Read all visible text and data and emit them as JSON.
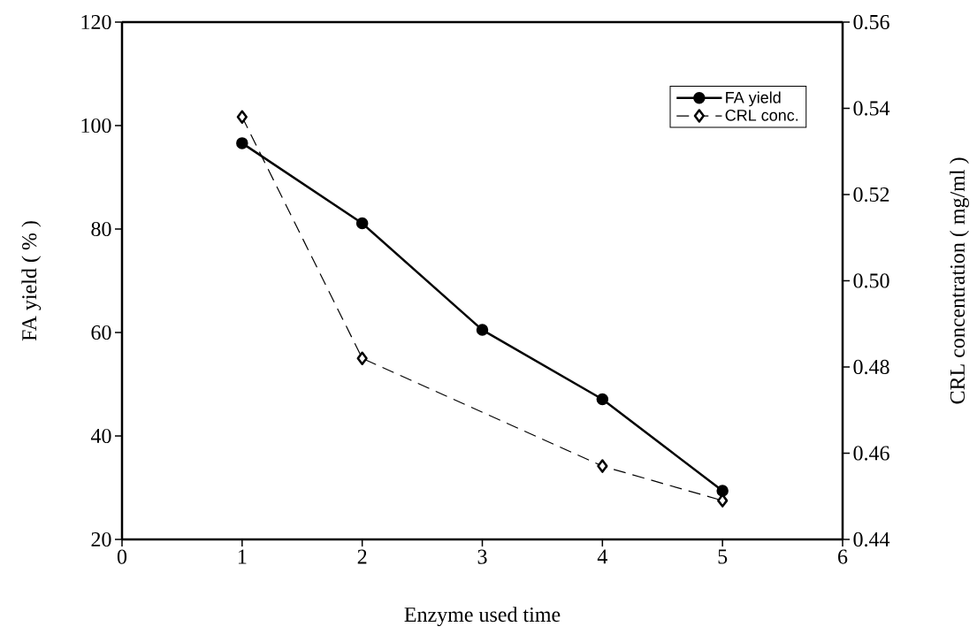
{
  "chart_data": {
    "type": "line",
    "xlabel": "Enzyme used time",
    "ylabel": "FA  yield  ( % )",
    "y2label": "CRL concentration ( mg/ml )",
    "x": [
      1,
      2,
      3,
      4,
      5
    ],
    "series": [
      {
        "name": "FA  yield",
        "color": "#000000",
        "values": [
          96.6,
          81.1,
          60.5,
          47.1,
          29.4
        ],
        "marker": "circle",
        "line_style": "solid"
      },
      {
        "name": "CRL conc.",
        "color": "#000000",
        "values": [
          0.538,
          0.482,
          null,
          0.457,
          0.449
        ],
        "axis": "y2",
        "marker": "diamond",
        "line_style": "dashed"
      }
    ],
    "xlim": [
      0,
      6
    ],
    "xticks": [
      0,
      1,
      2,
      3,
      4,
      5,
      6
    ],
    "ylim": [
      20,
      120
    ],
    "yticks": [
      20,
      40,
      60,
      80,
      100,
      120
    ],
    "y2lim": [
      0.44,
      0.56
    ],
    "y2ticks": [
      0.44,
      0.46,
      0.48,
      {
        "value": 0.5,
        "label": "0.50"
      },
      0.52,
      0.54,
      0.56
    ],
    "legend": "top right",
    "grid": false
  }
}
